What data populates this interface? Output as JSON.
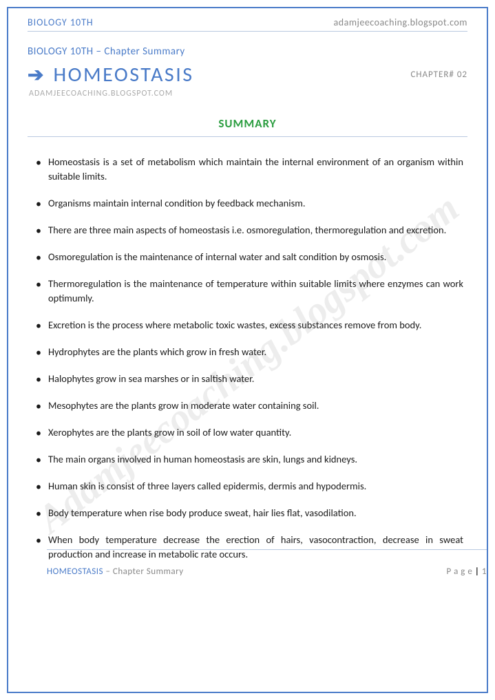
{
  "colors": {
    "accent": "#4a7bc8",
    "muted": "#888888",
    "heading_green": "#2a9d3f",
    "border_light": "#b8c8e0",
    "body_text": "#1a1a1a",
    "watermark": "rgba(130,130,130,0.14)"
  },
  "header": {
    "left": "BIOLOGY 10TH",
    "right": "adamjeecoaching.blogspot.com"
  },
  "chapter_label": "BIOLOGY 10TH – Chapter Summary",
  "title": "HOMEOSTASIS",
  "chapter_no": "CHAPTER# 02",
  "sub_url": "ADAMJEECOACHING.BLOGSPOT.COM",
  "section_heading": "SUMMARY",
  "bullets": [
    "Homeostasis is a set of metabolism which maintain the internal environment of an organism within suitable limits.",
    "Organisms maintain internal condition by feedback mechanism.",
    "There are three main aspects of homeostasis i.e. osmoregulation, thermoregulation and excretion.",
    "Osmoregulation is the maintenance of internal water and salt condition by osmosis.",
    "Thermoregulation is the maintenance of temperature within suitable limits where enzymes can work optimumly.",
    "Excretion is the process where metabolic toxic wastes, excess substances remove from body.",
    "Hydrophytes are the plants which grow in fresh water.",
    "Halophytes grow in sea marshes or in saltish water.",
    "Mesophytes are the plants grow in moderate water containing soil.",
    "Xerophytes are the plants grow in soil of low water quantity.",
    "The main organs involved in human homeostasis are skin, lungs and kidneys.",
    "Human skin is consist of three layers called epidermis, dermis and hypodermis.",
    "Body temperature when rise body produce sweat, hair lies flat, vasodilation.",
    "When body temperature decrease the erection of hairs, vasocontraction, decrease in sweat production and increase in metabolic rate occurs."
  ],
  "footer": {
    "title": "HOMEOSTASIS",
    "suffix": " – Chapter Summary",
    "page_label": "P a g e  ",
    "page_sep": "| ",
    "page_num": "1"
  },
  "watermark": "Adamjeecoaching.blogspot.com"
}
